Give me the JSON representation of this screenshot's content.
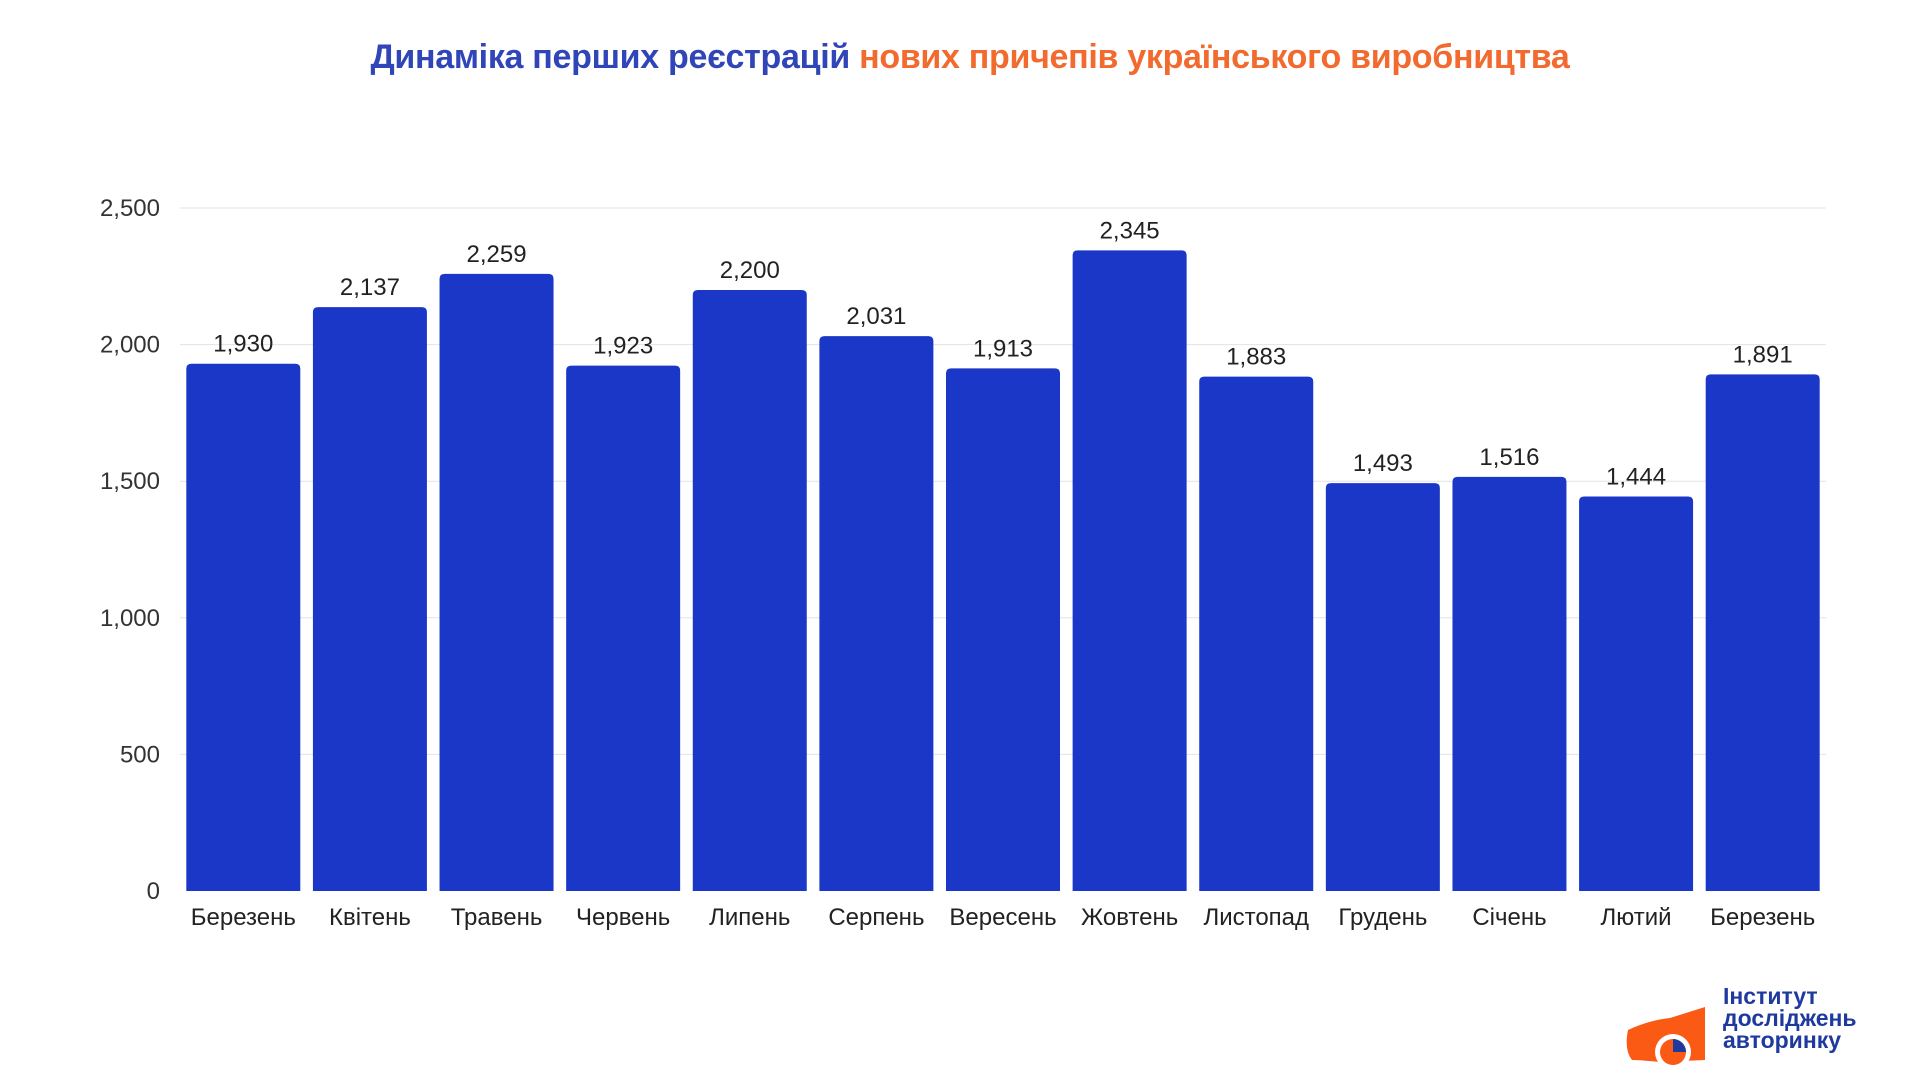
{
  "title": {
    "part1": "Динаміка перших реєстрацій",
    "part2": "нових причепів українського виробництва"
  },
  "colors": {
    "bar": "#1a37c8",
    "title_blue": "#2f45b8",
    "title_orange": "#f26a2e",
    "logo_orange": "#fa5a14",
    "logo_blue": "#1f3a9e"
  },
  "logo": {
    "line1": "Інститут",
    "line2": "досліджень",
    "line3": "авторинку"
  },
  "chart_data": {
    "type": "bar",
    "title": "Динаміка перших реєстрацій нових причепів українського виробництва",
    "xlabel": "",
    "ylabel": "",
    "categories": [
      "Березень",
      "Квітень",
      "Травень",
      "Червень",
      "Липень",
      "Серпень",
      "Вересень",
      "Жовтень",
      "Листопад",
      "Грудень",
      "Січень",
      "Лютий",
      "Березень"
    ],
    "values": [
      1930,
      2137,
      2259,
      1923,
      2200,
      2031,
      1913,
      2345,
      1883,
      1493,
      1516,
      1444,
      1891
    ],
    "value_labels": [
      "1,930",
      "2,137",
      "2,259",
      "1,923",
      "2,200",
      "2,031",
      "1,913",
      "2,345",
      "1,883",
      "1,493",
      "1,516",
      "1,444",
      "1,891"
    ],
    "ylim": [
      0,
      2500
    ],
    "yticks": [
      0,
      500,
      1000,
      1500,
      2000,
      2500
    ],
    "ytick_labels": [
      "0",
      "500",
      "1,000",
      "1,500",
      "2,000",
      "2,500"
    ],
    "grid": true,
    "legend": "none"
  }
}
